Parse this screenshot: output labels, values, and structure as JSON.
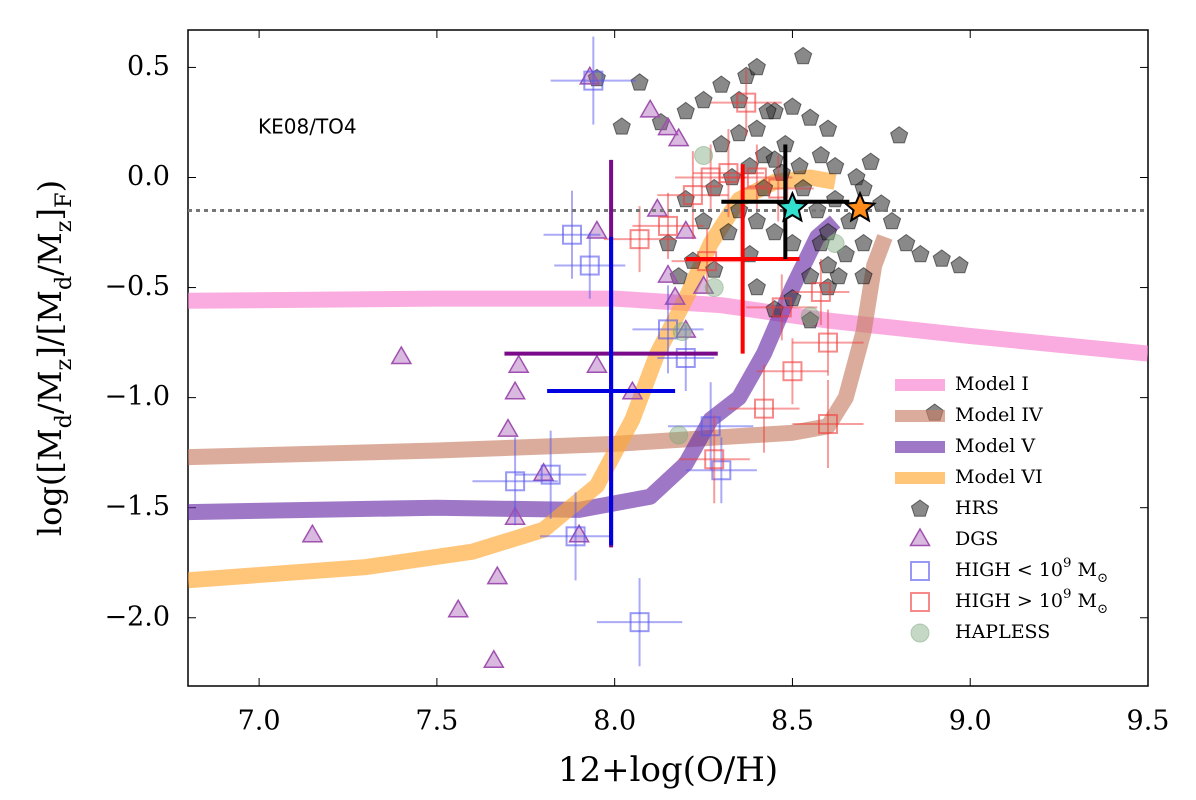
{
  "chart_data": {
    "type": "scatter",
    "xlabel": "12+log(O/H)",
    "ylabel": "log([M_d/M_z]/[M_d/M_z]_F)",
    "annotation": "KE08/TO4",
    "xlim": [
      6.8,
      9.5
    ],
    "ylim": [
      -2.31,
      0.67
    ],
    "xticks": [
      {
        "value": 7,
        "label": "7.0"
      },
      7.5,
      {
        "value": 8,
        "label": "8.0"
      },
      8.5,
      {
        "value": 9,
        "label": "9.0"
      },
      9.5
    ],
    "yticks": [
      0.5,
      {
        "value": 0,
        "label": "0.0"
      },
      {
        "value": -0.5,
        "label": "−0.5"
      },
      {
        "value": -1,
        "label": "−1.0"
      },
      {
        "value": -1.5,
        "label": "−1.5"
      },
      {
        "value": -2,
        "label": "−2.0"
      }
    ],
    "hline": -0.15,
    "series": [
      {
        "name": "Model I",
        "kind": "line",
        "color": "#f77fd0",
        "x": [
          6.8,
          7.5,
          8.0,
          8.3,
          8.6,
          9.0,
          9.5
        ],
        "values": [
          -0.56,
          -0.55,
          -0.55,
          -0.58,
          -0.65,
          -0.72,
          -0.8
        ]
      },
      {
        "name": "Model IV",
        "kind": "line",
        "color": "#c87f66",
        "x": [
          6.8,
          7.5,
          8.0,
          8.3,
          8.5,
          8.6,
          8.65,
          8.7,
          8.73,
          8.76
        ],
        "values": [
          -1.27,
          -1.24,
          -1.21,
          -1.18,
          -1.16,
          -1.13,
          -1.0,
          -0.7,
          -0.4,
          -0.27
        ]
      },
      {
        "name": "Model V",
        "kind": "line",
        "color": "#6a2fa8",
        "x": [
          6.8,
          7.5,
          7.9,
          8.1,
          8.2,
          8.27,
          8.35,
          8.42,
          8.5,
          8.57,
          8.62
        ],
        "values": [
          -1.52,
          -1.5,
          -1.51,
          -1.45,
          -1.3,
          -1.1,
          -1.0,
          -0.8,
          -0.5,
          -0.27,
          -0.2
        ]
      },
      {
        "name": "Model VI",
        "kind": "line",
        "color": "#ffa733",
        "x": [
          6.8,
          7.3,
          7.6,
          7.8,
          7.95,
          8.05,
          8.12,
          8.2,
          8.27,
          8.35,
          8.45,
          8.55,
          8.62
        ],
        "values": [
          -1.83,
          -1.77,
          -1.7,
          -1.6,
          -1.4,
          -1.1,
          -0.8,
          -0.55,
          -0.3,
          -0.1,
          -0.02,
          0.0,
          -0.02
        ]
      },
      {
        "name": "HRS",
        "kind": "pentagon",
        "color": "#3a3a3a",
        "x": [
          7.95,
          8.07,
          8.02,
          8.13,
          8.2,
          8.3,
          8.37,
          8.4,
          8.53,
          8.25,
          8.45,
          8.5,
          8.55,
          8.6,
          8.48,
          8.42,
          8.38,
          8.33,
          8.28,
          8.3,
          8.35,
          8.4,
          8.45,
          8.52,
          8.58,
          8.62,
          8.68,
          8.72,
          8.7,
          8.75,
          8.8,
          8.78,
          8.82,
          8.86,
          8.92,
          8.97,
          8.7,
          8.65,
          8.6,
          8.55,
          8.5,
          8.45,
          8.4,
          8.35,
          8.32,
          8.25,
          8.2,
          8.22,
          8.18,
          8.15,
          8.4,
          8.45,
          8.5,
          8.55,
          8.6,
          8.63,
          8.7,
          8.66,
          8.57,
          8.53,
          8.47,
          8.42,
          8.62,
          8.58,
          8.35,
          8.43,
          8.6,
          8.9,
          8.38,
          8.28
        ],
        "values": [
          0.45,
          0.43,
          0.23,
          0.25,
          0.3,
          0.42,
          0.46,
          0.5,
          0.55,
          0.35,
          0.3,
          0.32,
          0.27,
          0.22,
          0.15,
          0.1,
          0.05,
          0.0,
          -0.05,
          0.15,
          0.2,
          0.22,
          0.08,
          0.05,
          0.1,
          0.05,
          0.0,
          0.07,
          -0.05,
          -0.12,
          0.19,
          -0.2,
          -0.3,
          -0.35,
          -0.37,
          -0.4,
          -0.3,
          -0.35,
          -0.4,
          -0.45,
          -0.3,
          -0.25,
          -0.2,
          -0.15,
          -0.25,
          -0.2,
          -0.1,
          -0.38,
          -0.45,
          -0.3,
          -0.5,
          -0.6,
          -0.55,
          -0.65,
          -0.5,
          -0.45,
          -0.45,
          -0.2,
          -0.15,
          -0.05,
          0.02,
          -0.05,
          -0.1,
          -0.3,
          0.35,
          0.3,
          -0.25,
          -1.07,
          -0.35,
          -0.42
        ]
      },
      {
        "name": "DGS",
        "kind": "triangle",
        "color": "#a050b0",
        "x": [
          7.93,
          8.1,
          8.15,
          8.18,
          8.12,
          8.2,
          7.95,
          8.15,
          8.17,
          7.4,
          7.73,
          7.95,
          7.72,
          8.05,
          7.7,
          7.8,
          7.72,
          7.9,
          7.15,
          7.67,
          7.56,
          7.66,
          8.2,
          8.25
        ],
        "values": [
          0.45,
          0.3,
          0.22,
          0.17,
          -0.15,
          -0.25,
          -0.25,
          -0.45,
          -0.55,
          -0.82,
          -0.86,
          -0.86,
          -0.98,
          -0.98,
          -1.15,
          -1.35,
          -1.55,
          -1.63,
          -1.63,
          -1.82,
          -1.97,
          -2.2,
          -0.7,
          -0.5
        ]
      },
      {
        "name": "HIGH < 10^9 M_⊙",
        "kind": "square",
        "color": "#5555ee",
        "x": [
          7.94,
          7.88,
          7.93,
          8.15,
          8.27,
          8.3,
          7.72,
          7.82,
          7.89,
          8.07,
          8.2
        ],
        "values": [
          0.44,
          -0.26,
          -0.4,
          -0.69,
          -1.13,
          -1.33,
          -1.38,
          -1.35,
          -1.63,
          -2.02,
          -0.82
        ],
        "xerr": [
          0.12,
          0.08,
          0.1,
          0.1,
          0.12,
          0.1,
          0.12,
          0.1,
          0.1,
          0.12,
          0.08
        ],
        "yerr": [
          0.2,
          0.2,
          0.15,
          0.2,
          0.2,
          0.15,
          0.2,
          0.2,
          0.2,
          0.2,
          0.15
        ]
      },
      {
        "name": "HIGH > 10^9 M_⊙",
        "kind": "square",
        "color": "#f03c3c",
        "x": [
          8.37,
          8.32,
          8.27,
          8.22,
          8.15,
          8.07,
          8.4,
          8.46,
          8.47,
          8.58,
          8.5,
          8.6,
          8.42,
          8.6,
          8.28,
          8.26
        ],
        "values": [
          0.34,
          0.02,
          0.0,
          -0.08,
          -0.22,
          -0.28,
          0.0,
          -0.05,
          -0.59,
          -0.52,
          -0.88,
          -0.75,
          -1.05,
          -1.12,
          -1.28,
          -0.38
        ],
        "xerr": [
          0.1,
          0.1,
          0.1,
          0.1,
          0.1,
          0.1,
          0.1,
          0.1,
          0.1,
          0.08,
          0.1,
          0.1,
          0.1,
          0.1,
          0.1,
          0.1
        ],
        "yerr": [
          0.15,
          0.2,
          0.15,
          0.2,
          0.15,
          0.15,
          0.15,
          0.15,
          0.15,
          0.15,
          0.15,
          0.15,
          0.2,
          0.2,
          0.2,
          0.15
        ]
      },
      {
        "name": "HAPLESS",
        "kind": "circle",
        "color": "#7fa87f",
        "x": [
          8.25,
          8.19,
          8.18,
          8.28,
          8.55,
          8.62
        ],
        "values": [
          0.1,
          -0.7,
          -1.17,
          -0.5,
          -0.63,
          -0.3
        ]
      }
    ],
    "crosses": [
      {
        "color": "#7a0a8a",
        "x": 7.99,
        "xerr": 0.3,
        "y": -0.8,
        "yerr": 0.88
      },
      {
        "color": "#0000e0",
        "x": 7.99,
        "xerr": 0.18,
        "y": -0.97,
        "yerr": 0.7
      },
      {
        "color": "#ff0000",
        "x": 8.36,
        "xerr": 0.16,
        "y": -0.37,
        "yerr": 0.43
      },
      {
        "color": "#000000",
        "x": 8.48,
        "xerr": 0.18,
        "y": -0.11,
        "yerr": 0.26
      }
    ],
    "stars": [
      {
        "color": "#33e0d0",
        "x": 8.5,
        "y": -0.14
      },
      {
        "color": "#ff8c1a",
        "x": 8.69,
        "y": -0.14
      }
    ]
  }
}
